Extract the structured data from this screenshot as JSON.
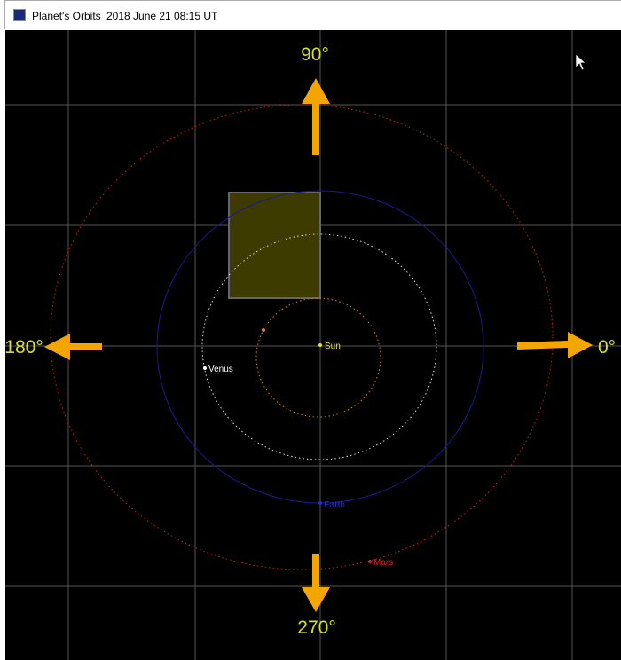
{
  "window": {
    "title": "Planet's Orbits",
    "date": "2018 June 21",
    "time": "08:15 UT"
  },
  "directions": {
    "north": "90°",
    "west": "180°",
    "east": "0°",
    "south": "270°"
  },
  "planets": {
    "sun": "Sun",
    "venus": "Venus",
    "earth": "Earth",
    "mars": "Mars"
  }
}
